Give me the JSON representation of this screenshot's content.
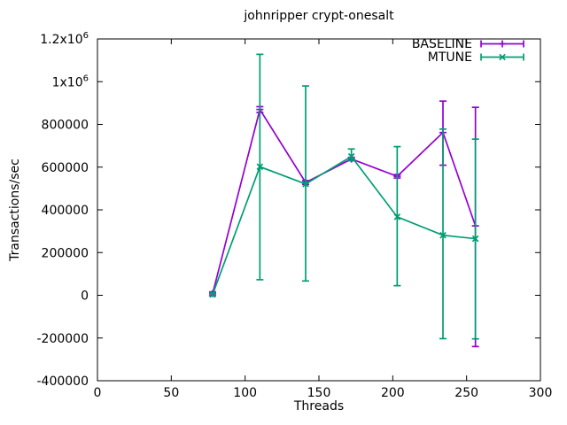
{
  "colors": {
    "baseline_series": "#9400D3",
    "mtune_series": "#009E73",
    "axis": "#000000",
    "text": "#000000",
    "background": "#FFFFFF"
  },
  "chart_data": {
    "type": "line",
    "error_bars": true,
    "title": "johnripper crypt-onesalt",
    "xlabel": "Threads",
    "ylabel": "Transactions/sec",
    "xlim": [
      0,
      300
    ],
    "ylim": [
      -400000,
      1200000
    ],
    "grid": false,
    "legend_position": "top-right",
    "xticks": {
      "values": [
        0,
        50,
        100,
        150,
        200,
        250,
        300
      ],
      "labels": [
        "0",
        "50",
        "100",
        "150",
        "200",
        "250",
        "300"
      ]
    },
    "yticks": {
      "values": [
        -400000,
        -200000,
        0,
        200000,
        400000,
        600000,
        800000,
        1000000,
        1200000
      ],
      "labels": [
        "-400000",
        "-200000",
        "0",
        "200000",
        "400000",
        "600000",
        "800000",
        "1x10^6",
        "1.2x10^6"
      ]
    },
    "series": [
      {
        "name": "BASELINE",
        "color": "#9400D3",
        "marker": "plus",
        "x": [
          78,
          110,
          141,
          172,
          203,
          234,
          256
        ],
        "y": [
          8000,
          870000,
          528000,
          638000,
          557000,
          762000,
          325000
        ],
        "y_low": [
          0,
          856000,
          519000,
          630000,
          549000,
          609000,
          -240000
        ],
        "y_high": [
          16000,
          883000,
          537000,
          646000,
          565000,
          909000,
          880000
        ]
      },
      {
        "name": "MTUNE",
        "color": "#009E73",
        "marker": "cross",
        "x": [
          78,
          110,
          141,
          172,
          203,
          234,
          256
        ],
        "y": [
          4000,
          602000,
          521000,
          650000,
          367000,
          281000,
          265000
        ],
        "y_low": [
          -2000,
          73000,
          67000,
          630000,
          45000,
          -203000,
          -204000
        ],
        "y_high": [
          10000,
          1128000,
          980000,
          685000,
          696000,
          778000,
          731000
        ]
      }
    ]
  }
}
